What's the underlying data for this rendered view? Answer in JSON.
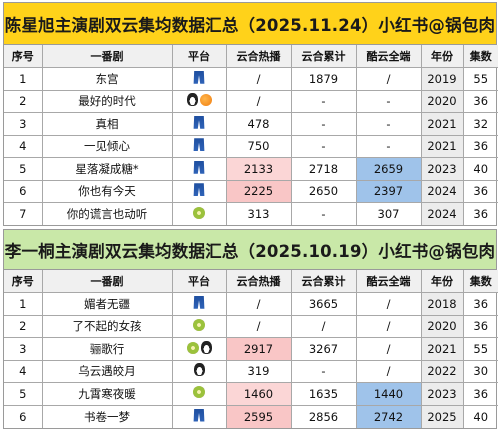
{
  "table1": {
    "title": "陈星旭主演剧双云集均数据汇总（2025.11.24）小红书@锅包肉",
    "headers": [
      "序号",
      "一番剧",
      "平台",
      "云合热播",
      "云合累计",
      "酷云全端",
      "年份",
      "集数"
    ],
    "rows": [
      {
        "idx": "1",
        "name": "东宫",
        "icons": [
          "jeans-icon"
        ],
        "yunhe_hot": "/",
        "yunhe_total": "1879",
        "kuyun": "/",
        "year": "2019",
        "eps": "55",
        "hot_class": "",
        "ku_class": ""
      },
      {
        "idx": "2",
        "name": "最好的时代",
        "icons": [
          "penguin-icon",
          "orange-icon"
        ],
        "yunhe_hot": "/",
        "yunhe_total": "-",
        "kuyun": "-",
        "year": "2020",
        "eps": "36",
        "hot_class": "",
        "ku_class": ""
      },
      {
        "idx": "3",
        "name": "真相",
        "icons": [
          "jeans-icon"
        ],
        "yunhe_hot": "478",
        "yunhe_total": "-",
        "kuyun": "-",
        "year": "2021",
        "eps": "32",
        "hot_class": "",
        "ku_class": ""
      },
      {
        "idx": "4",
        "name": "一见倾心",
        "icons": [
          "jeans-icon"
        ],
        "yunhe_hot": "750",
        "yunhe_total": "-",
        "kuyun": "-",
        "year": "2021",
        "eps": "36",
        "hot_class": "",
        "ku_class": ""
      },
      {
        "idx": "5",
        "name": "星落凝成糖*",
        "icons": [
          "jeans-icon"
        ],
        "yunhe_hot": "2133",
        "yunhe_total": "2718",
        "kuyun": "2659",
        "year": "2023",
        "eps": "40",
        "hot_class": "hot2",
        "ku_class": "blue"
      },
      {
        "idx": "6",
        "name": "你也有今天",
        "icons": [
          "jeans-icon"
        ],
        "yunhe_hot": "2225",
        "yunhe_total": "2650",
        "kuyun": "2397",
        "year": "2024",
        "eps": "36",
        "hot_class": "hot1",
        "ku_class": "blue"
      },
      {
        "idx": "7",
        "name": "你的谎言也动听",
        "icons": [
          "kiwi-icon"
        ],
        "yunhe_hot": "313",
        "yunhe_total": "-",
        "kuyun": "307",
        "year": "2024",
        "eps": "36",
        "hot_class": "",
        "ku_class": ""
      }
    ]
  },
  "table2": {
    "title": "李一桐主演剧双云集均数据汇总（2025.10.19）小红书@锅包肉",
    "headers": [
      "序号",
      "一番剧",
      "平台",
      "云合热播",
      "云合累计",
      "酷云全端",
      "年份",
      "集数"
    ],
    "rows": [
      {
        "idx": "1",
        "name": "媚者无疆",
        "icons": [
          "jeans-icon"
        ],
        "yunhe_hot": "/",
        "yunhe_total": "3665",
        "kuyun": "/",
        "year": "2018",
        "eps": "36",
        "hot_class": "",
        "ku_class": ""
      },
      {
        "idx": "2",
        "name": "了不起的女孩",
        "icons": [
          "kiwi-icon"
        ],
        "yunhe_hot": "/",
        "yunhe_total": "/",
        "kuyun": "/",
        "year": "2020",
        "eps": "36",
        "hot_class": "",
        "ku_class": ""
      },
      {
        "idx": "3",
        "name": "骊歌行",
        "icons": [
          "kiwi-icon",
          "penguin-icon"
        ],
        "yunhe_hot": "2917",
        "yunhe_total": "3267",
        "kuyun": "/",
        "year": "2021",
        "eps": "55",
        "hot_class": "hot1",
        "ku_class": ""
      },
      {
        "idx": "4",
        "name": "乌云遇皎月",
        "icons": [
          "penguin-icon"
        ],
        "yunhe_hot": "319",
        "yunhe_total": "-",
        "kuyun": "/",
        "year": "2022",
        "eps": "30",
        "hot_class": "",
        "ku_class": ""
      },
      {
        "idx": "5",
        "name": "九霄寒夜暖",
        "icons": [
          "kiwi-icon"
        ],
        "yunhe_hot": "1460",
        "yunhe_total": "1635",
        "kuyun": "1440",
        "year": "2023",
        "eps": "36",
        "hot_class": "hot2",
        "ku_class": "blue"
      },
      {
        "idx": "6",
        "name": "书卷一梦",
        "icons": [
          "jeans-icon"
        ],
        "yunhe_hot": "2595",
        "yunhe_total": "2856",
        "kuyun": "2742",
        "year": "2025",
        "eps": "40",
        "hot_class": "hot1",
        "ku_class": "blue"
      }
    ]
  },
  "colors": {
    "title1_bg": "#ffd21a",
    "title2_bg": "#c9e8a8",
    "hot_high": "#f9c6c6",
    "kuyun_high": "#9fc3ea"
  }
}
